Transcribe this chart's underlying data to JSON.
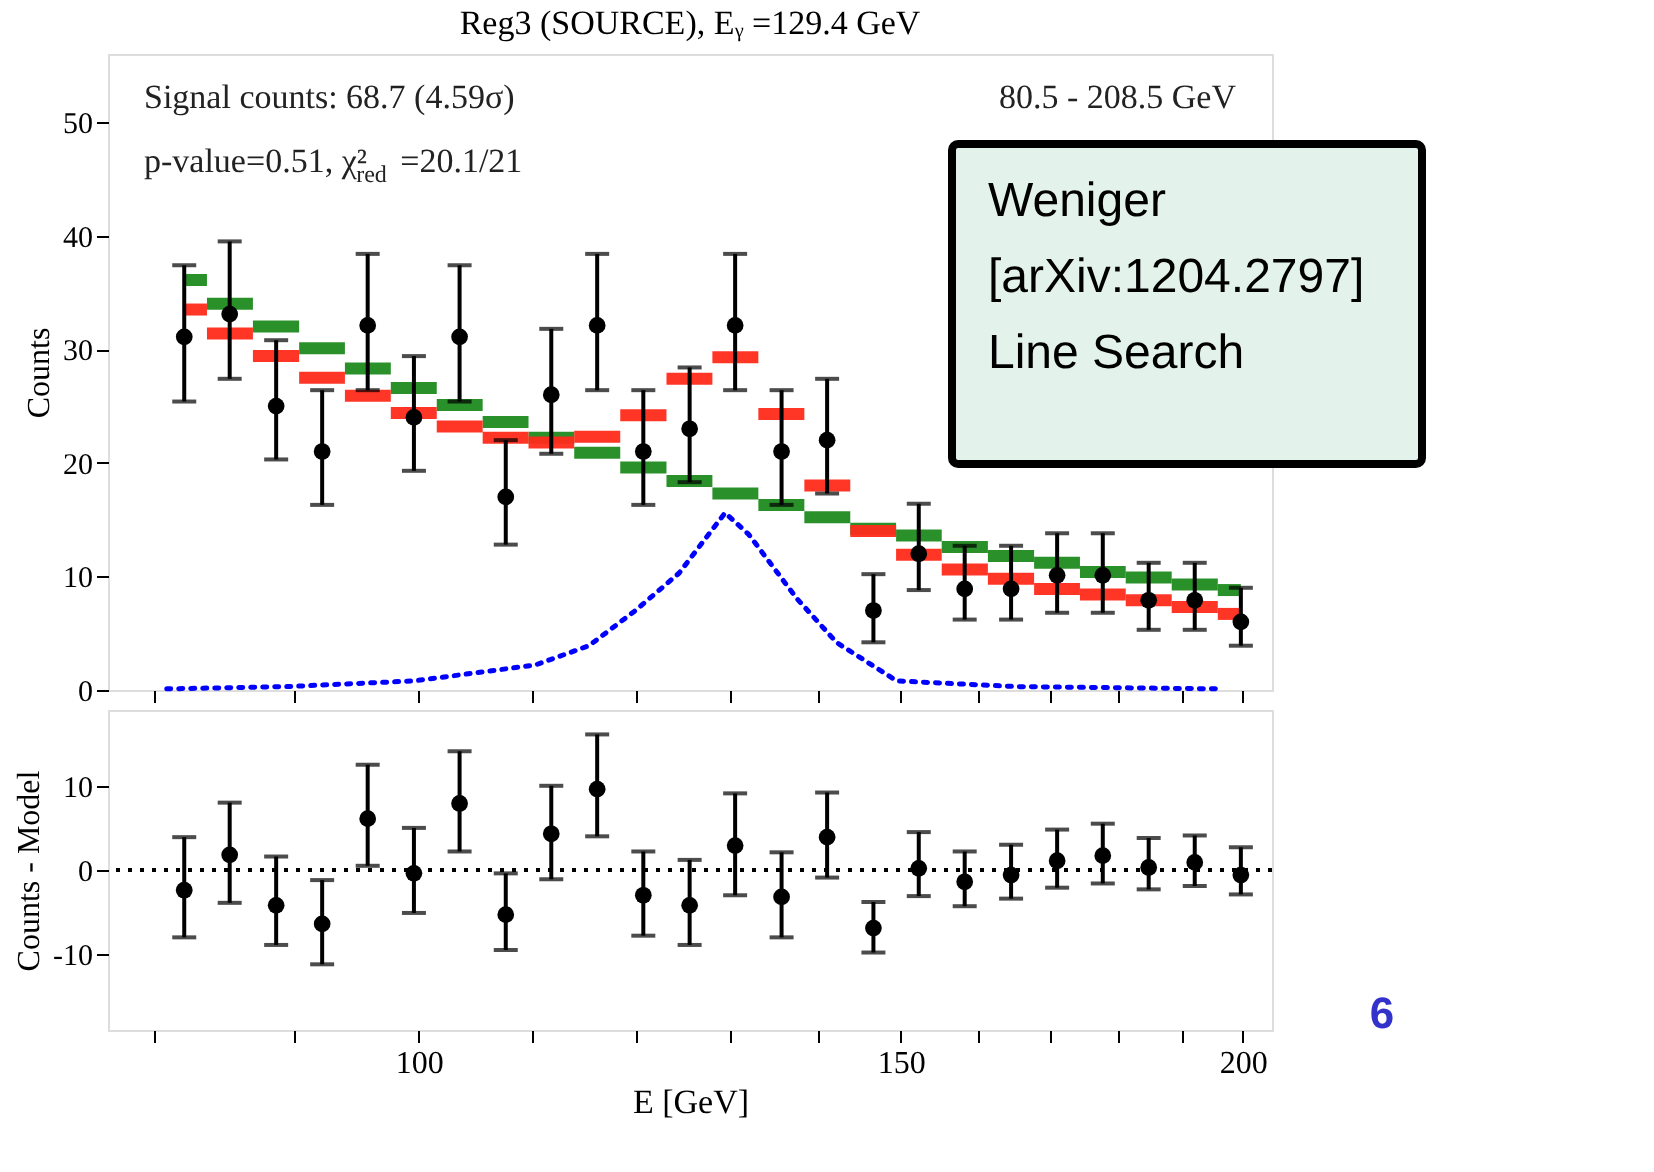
{
  "chart_data": [
    {
      "type": "scatter",
      "title": "Reg3 (SOURCE), Eᵧ =129.4 GeV",
      "ylabel": "Counts",
      "x": [
        82.1,
        85.3,
        88.7,
        92.2,
        95.8,
        99.6,
        103.5,
        107.6,
        111.8,
        116.2,
        120.8,
        125.6,
        130.5,
        135.7,
        141.0,
        146.6,
        152.3,
        158.3,
        164.6,
        171.1,
        177.8,
        184.8,
        192.1,
        199.7
      ],
      "series": [
        {
          "type": "step",
          "color": "#1f8a1f",
          "values": [
            36.1,
            34.0,
            32.0,
            30.1,
            28.3,
            26.6,
            25.1,
            23.6,
            22.2,
            20.9,
            19.6,
            18.4,
            17.3,
            16.3,
            15.2,
            14.2,
            13.6,
            12.6,
            11.8,
            11.2,
            10.4,
            9.9,
            9.3,
            8.8
          ]
        },
        {
          "type": "step",
          "color": "#ff2a1a",
          "values": [
            33.5,
            31.4,
            29.4,
            27.5,
            25.9,
            24.4,
            23.2,
            22.2,
            21.8,
            22.3,
            24.2,
            27.4,
            29.3,
            24.3,
            18.0,
            14.0,
            11.9,
            10.6,
            9.8,
            8.9,
            8.4,
            7.9,
            7.3,
            6.7
          ]
        },
        {
          "type": "line",
          "color": "#0000ff",
          "line_style": "dotted",
          "x": [
            80.9,
            89.5,
            99.6,
            110.3,
            115.4,
            120.0,
            124.5,
            129.4,
            132.0,
            137.4,
            142.1,
            149.5,
            165.3,
            195.8
          ],
          "values": [
            0.1,
            0.3,
            0.8,
            2.2,
            3.9,
            7.0,
            10.3,
            15.6,
            13.7,
            8.1,
            4.2,
            0.8,
            0.3,
            0.1
          ]
        },
        {
          "type": "scatter",
          "color": "#000000",
          "marker": "circle",
          "values": [
            31.1,
            33.1,
            25.0,
            21.0,
            32.1,
            24.0,
            31.1,
            17.0,
            26.0,
            32.1,
            21.0,
            23.0,
            32.1,
            21.0,
            22.0,
            7.0,
            12.0,
            8.9,
            8.9,
            10.1,
            10.1,
            7.9,
            7.9,
            6.0
          ],
          "errors": [
            [
              25.4,
              37.4
            ],
            [
              27.4,
              39.5
            ],
            [
              20.3,
              30.8
            ],
            [
              16.3,
              26.4
            ],
            [
              26.4,
              38.4
            ],
            [
              19.3,
              29.4
            ],
            [
              25.4,
              37.4
            ],
            [
              12.8,
              22.0
            ],
            [
              20.8,
              31.8
            ],
            [
              26.4,
              38.4
            ],
            [
              16.3,
              26.4
            ],
            [
              18.3,
              28.4
            ],
            [
              26.4,
              38.4
            ],
            [
              16.3,
              26.4
            ],
            [
              17.3,
              27.4
            ],
            [
              4.2,
              10.2
            ],
            [
              8.8,
              16.4
            ],
            [
              6.2,
              12.7
            ],
            [
              6.2,
              12.7
            ],
            [
              6.8,
              13.8
            ],
            [
              6.8,
              13.8
            ],
            [
              5.3,
              11.2
            ],
            [
              5.3,
              11.2
            ],
            [
              3.9,
              9.0
            ]
          ]
        }
      ],
      "xlim": [
        77,
        205
      ],
      "ylim": [
        0,
        56
      ],
      "yticks": [
        0,
        10,
        20,
        30,
        40,
        50
      ],
      "xticks": [
        {
          "value": 80,
          "label": null
        },
        {
          "value": 90,
          "label": null
        },
        100,
        {
          "value": 110,
          "label": null
        },
        {
          "value": 120,
          "label": null
        },
        {
          "value": 130,
          "label": null
        },
        {
          "value": 140,
          "label": null
        },
        150,
        {
          "value": 160,
          "label": null
        },
        {
          "value": 170,
          "label": null
        },
        {
          "value": 180,
          "label": null
        },
        {
          "value": 190,
          "label": null
        },
        200
      ],
      "log": "x",
      "tick_labels": "y",
      "grid": false,
      "annotations": [
        "Signal counts: 68.7 (4.59σ)",
        "p-value=0.51, χ²$_{red}$ =20.1/21",
        "80.5 - 208.5 GeV",
        "Weniger\n[arXiv:1204.2797]\nLine Search"
      ]
    },
    {
      "type": "scatter",
      "xlabel": "E [GeV]",
      "ylabel": "Counts - Model",
      "x": [
        82.1,
        85.3,
        88.7,
        92.2,
        95.8,
        99.6,
        103.5,
        107.6,
        111.8,
        116.2,
        120.8,
        125.6,
        130.5,
        135.7,
        141.0,
        146.6,
        152.3,
        158.3,
        164.6,
        171.1,
        177.8,
        184.8,
        192.1,
        199.7
      ],
      "series": [
        {
          "type": "scatter",
          "color": "#000000",
          "marker": "circle",
          "values": [
            -2.4,
            1.8,
            -4.2,
            -6.4,
            6.1,
            -0.4,
            7.9,
            -5.3,
            4.3,
            9.6,
            -3.0,
            -4.2,
            2.9,
            -3.2,
            3.9,
            -6.9,
            0.2,
            -1.4,
            -0.6,
            1.1,
            1.7,
            0.3,
            0.9,
            -0.6
          ],
          "errors": [
            [
              -8.0,
              3.9
            ],
            [
              -3.9,
              8.0
            ],
            [
              -8.9,
              1.6
            ],
            [
              -11.2,
              -1.2
            ],
            [
              0.5,
              12.5
            ],
            [
              -5.1,
              5.0
            ],
            [
              2.2,
              14.1
            ],
            [
              -9.5,
              -0.4
            ],
            [
              -1.1,
              10.0
            ],
            [
              4.0,
              16.1
            ],
            [
              -7.8,
              2.2
            ],
            [
              -8.9,
              1.2
            ],
            [
              -3.0,
              9.1
            ],
            [
              -8.0,
              2.1
            ],
            [
              -0.9,
              9.2
            ],
            [
              -9.8,
              -3.8
            ],
            [
              -3.1,
              4.5
            ],
            [
              -4.3,
              2.2
            ],
            [
              -3.4,
              3.0
            ],
            [
              -2.1,
              4.8
            ],
            [
              -1.6,
              5.5
            ],
            [
              -2.3,
              3.8
            ],
            [
              -1.9,
              4.1
            ],
            [
              -2.9,
              2.7
            ]
          ]
        }
      ],
      "xlim": [
        77,
        205
      ],
      "ylim": [
        -19,
        19
      ],
      "yticks": [
        -10,
        0,
        10
      ],
      "xticks": [
        {
          "value": 80,
          "label": null
        },
        {
          "value": 90,
          "label": null
        },
        100,
        {
          "value": 110,
          "label": null
        },
        {
          "value": 120,
          "label": null
        },
        {
          "value": 130,
          "label": null
        },
        {
          "value": 140,
          "label": null
        },
        150,
        {
          "value": 160,
          "label": null
        },
        {
          "value": 170,
          "label": null
        },
        {
          "value": 180,
          "label": null
        },
        {
          "value": 190,
          "label": null
        },
        200
      ],
      "log": "x",
      "grid": false,
      "ref_lines": [
        {
          "axis": "y",
          "value": 0,
          "color": "#000000",
          "line_style": "dotted"
        }
      ],
      "annotations": [
        "6"
      ]
    }
  ]
}
